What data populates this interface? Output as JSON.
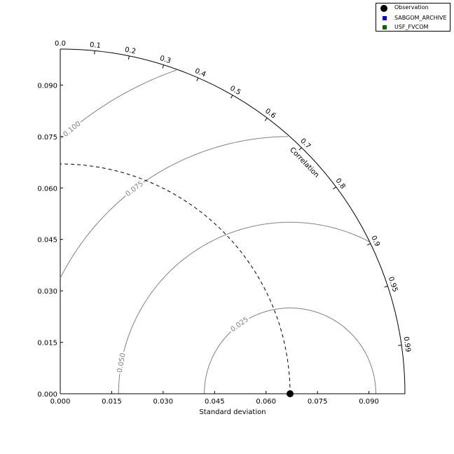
{
  "chart_data": {
    "type": "taylor_diagram",
    "xlabel": "Standard deviation",
    "corr_label": "Correlation",
    "std_max": 0.1005,
    "std_ticks": [
      "0.000",
      "0.015",
      "0.030",
      "0.045",
      "0.060",
      "0.075",
      "0.090"
    ],
    "std_tick_values": [
      0,
      0.015,
      0.03,
      0.045,
      0.06,
      0.075,
      0.09
    ],
    "corr_ticks": [
      "0.0",
      "0.1",
      "0.2",
      "0.3",
      "0.4",
      "0.5",
      "0.6",
      "0.7",
      "0.8",
      "0.9",
      "0.95",
      "0.99"
    ],
    "corr_tick_values": [
      0,
      0.1,
      0.2,
      0.3,
      0.4,
      0.5,
      0.6,
      0.7,
      0.8,
      0.9,
      0.95,
      0.99
    ],
    "reference_std": 0.067,
    "rms_contours": [
      {
        "value": 0.025,
        "label": "0.025"
      },
      {
        "value": 0.05,
        "label": "0.050"
      },
      {
        "value": 0.075,
        "label": "0.075"
      },
      {
        "value": 0.1,
        "label": "0.100"
      }
    ],
    "series": [
      {
        "name": "Observation",
        "std": 0.067,
        "corr": 1.0,
        "color": "#000000",
        "marker": "circle"
      },
      {
        "name": "SABGOM_ARCHIVE",
        "color": "#0000cc",
        "marker": "square"
      },
      {
        "name": "USF_FVCOM",
        "color": "#006600",
        "marker": "square"
      }
    ],
    "legend_position": "top-right",
    "grid": false
  }
}
